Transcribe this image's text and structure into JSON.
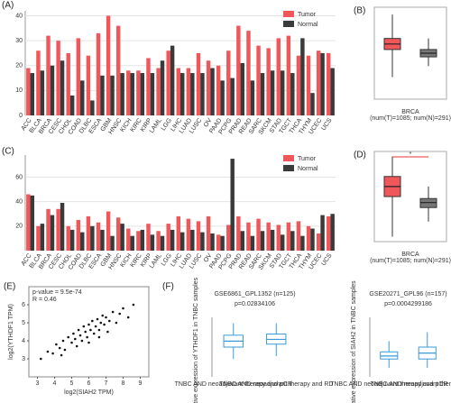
{
  "chart_data": [
    {
      "type": "bar",
      "panel": "(A)",
      "legend": "top-right",
      "categories": [
        "ACC",
        "BLCA",
        "BRCA",
        "CESC",
        "CHOL",
        "COAD",
        "DLBC",
        "ESCA",
        "GBM",
        "HNSC",
        "KICH",
        "KIRC",
        "KIRP",
        "LAML",
        "LGG",
        "LIHC",
        "LUAD",
        "LUSC",
        "OV",
        "PAAD",
        "PCPG",
        "PRAD",
        "READ",
        "SARC",
        "SKCM",
        "STAD",
        "TGCT",
        "THCA",
        "THYM",
        "UCEC",
        "UCS"
      ],
      "series": [
        {
          "name": "Tumor",
          "color": "#f0575b",
          "values": [
            19,
            26,
            32,
            30,
            25,
            31,
            24,
            33,
            40,
            36,
            18,
            18,
            23,
            19,
            26,
            19,
            19,
            25,
            22,
            20,
            26,
            36,
            34,
            28,
            27,
            31,
            32,
            24,
            24,
            26,
            25
          ]
        },
        {
          "name": "Normal",
          "color": "#3a3a3a",
          "values": [
            17,
            18,
            20,
            22,
            8,
            14,
            6,
            16,
            16,
            17,
            17,
            17,
            17,
            22,
            28,
            17,
            17,
            17,
            19,
            14,
            15,
            21,
            14,
            17,
            18,
            18,
            17,
            31,
            9,
            25,
            19
          ]
        }
      ],
      "ylim": [
        0,
        42
      ],
      "yticks": [
        0,
        10,
        20,
        30,
        40
      ],
      "grid": true
    },
    {
      "type": "box",
      "panel": "(B)",
      "xlabel": "BRCA",
      "xnote": "(num(T)=1085; num(N)=291)",
      "ylim": [
        2,
        7
      ],
      "boxes": [
        {
          "color": "#f0575b",
          "whisker_low": 3.2,
          "q1": 4.7,
          "median": 5.0,
          "q3": 5.3,
          "whisker_high": 6.6
        },
        {
          "color": "#777777",
          "whisker_low": 3.8,
          "q1": 4.3,
          "median": 4.5,
          "q3": 4.7,
          "whisker_high": 5.3
        }
      ]
    },
    {
      "type": "bar",
      "panel": "(C)",
      "legend": "top-right",
      "categories": [
        "ACC",
        "BLCA",
        "BRCA",
        "CESC",
        "CHOL",
        "COAD",
        "DLBC",
        "ESCA",
        "GBM",
        "HNSC",
        "KICH",
        "KIRC",
        "KIRP",
        "LAML",
        "LGG",
        "LIHC",
        "LUAD",
        "LUSC",
        "OV",
        "PAAD",
        "PCPG",
        "PRAD",
        "READ",
        "SARC",
        "SKCM",
        "STAD",
        "TGCT",
        "THCA",
        "THYM",
        "UCEC",
        "UCS"
      ],
      "series": [
        {
          "name": "Tumor",
          "color": "#f0575b",
          "values": [
            46,
            20,
            34,
            34,
            20,
            25,
            28,
            23,
            32,
            27,
            18,
            16,
            22,
            16,
            22,
            28,
            26,
            24,
            28,
            13,
            21,
            28,
            23,
            26,
            23,
            21,
            23,
            24,
            20,
            14,
            28
          ]
        },
        {
          "name": "Normal",
          "color": "#3a3a3a",
          "values": [
            45,
            22,
            29,
            39,
            17,
            15,
            20,
            17,
            12,
            22,
            12,
            17,
            13,
            12,
            17,
            15,
            17,
            15,
            14,
            12,
            75,
            16,
            12,
            16,
            17,
            13,
            16,
            12,
            18,
            29,
            30
          ]
        }
      ],
      "ylim": [
        0,
        78
      ],
      "yticks": [
        20,
        40,
        60
      ],
      "grid": true
    },
    {
      "type": "box",
      "panel": "(D)",
      "xlabel": "BRCA",
      "xnote": "(num(T)=1085; num(N)=291)",
      "annotation": "*",
      "ylim": [
        0,
        9
      ],
      "boxes": [
        {
          "color": "#f0575b",
          "whisker_low": 0.5,
          "q1": 4.5,
          "median": 5.5,
          "q3": 6.5,
          "whisker_high": 8.5
        },
        {
          "color": "#777777",
          "whisker_low": 2.0,
          "q1": 3.4,
          "median": 3.9,
          "q3": 4.3,
          "whisker_high": 5.5
        }
      ]
    },
    {
      "type": "scatter",
      "panel": "(E)",
      "color": "#111111",
      "annotation": "p-value = 9.5e-74",
      "annotation2": "R = 0.46",
      "xlabel": "log2(SIAH2 TPM)",
      "ylabel": "log2(YTHDF1 TPM)",
      "x": [
        3.2,
        3.6,
        3.9,
        4.1,
        4.3,
        4.5,
        4.6,
        4.8,
        5.0,
        5.1,
        5.2,
        5.4,
        5.5,
        5.6,
        5.7,
        5.8,
        5.9,
        6.0,
        6.1,
        6.2,
        6.3,
        6.4,
        6.5,
        6.6,
        6.7,
        6.8,
        6.9,
        7.0,
        7.2,
        7.4,
        7.6,
        7.8,
        8.0,
        8.3,
        8.6,
        4.4,
        5.3,
        6.0,
        6.6,
        7.1
      ],
      "y": [
        3.0,
        3.4,
        3.3,
        3.8,
        3.6,
        4.0,
        3.5,
        4.2,
        3.9,
        4.4,
        4.1,
        4.6,
        4.3,
        4.0,
        4.8,
        4.5,
        4.2,
        4.9,
        4.6,
        5.1,
        4.4,
        4.8,
        5.2,
        4.6,
        5.0,
        5.4,
        4.9,
        5.3,
        5.1,
        5.6,
        5.0,
        5.5,
        5.8,
        5.3,
        6.0,
        3.2,
        3.7,
        3.9,
        4.2,
        4.5
      ],
      "xlim": [
        2.5,
        9.5
      ],
      "xticks": [
        3,
        4,
        5,
        6,
        7,
        8,
        9
      ],
      "ylim": [
        2,
        7
      ],
      "yticks": [
        3,
        4,
        5,
        6
      ]
    },
    {
      "type": "box",
      "panel": "(F)",
      "title": "GSE6861_GPL1352 (n=125)",
      "subtitle": "p=0.02834106",
      "ylabel": "Relative expression of YTHDF1 in TNBC samples",
      "categories": [
        "TNBC AND neoadjuvant therapy and pCR",
        "TNBC AND neoadjuvant therapy and RD"
      ],
      "ylim": [
        0,
        10
      ],
      "outline": true,
      "boxes": [
        {
          "color": "#3a9ad9",
          "whisker_low": 3,
          "q1": 5,
          "median": 6,
          "q3": 7,
          "whisker_high": 9
        },
        {
          "color": "#3a9ad9",
          "whisker_low": 3.5,
          "q1": 5.5,
          "median": 6.3,
          "q3": 7.2,
          "whisker_high": 9
        }
      ]
    },
    {
      "type": "box",
      "title": "GSE20271_GPL96 (n=157)",
      "subtitle": "p=0.0004299186",
      "ylabel": "Relative expression of SIAH2 in TNBC samples",
      "categories": [
        "TNBC AND neoadjuvant therapy and pCR",
        "TNBC AND neoadjuvant therapy and RD"
      ],
      "ylim": [
        0,
        10
      ],
      "outline": true,
      "boxes": [
        {
          "color": "#3a9ad9",
          "whisker_low": 1.5,
          "q1": 3,
          "median": 3.5,
          "q3": 4.2,
          "whisker_high": 6
        },
        {
          "color": "#3a9ad9",
          "whisker_low": 1.5,
          "q1": 3,
          "median": 4,
          "q3": 5,
          "whisker_high": 7.5
        }
      ]
    }
  ]
}
